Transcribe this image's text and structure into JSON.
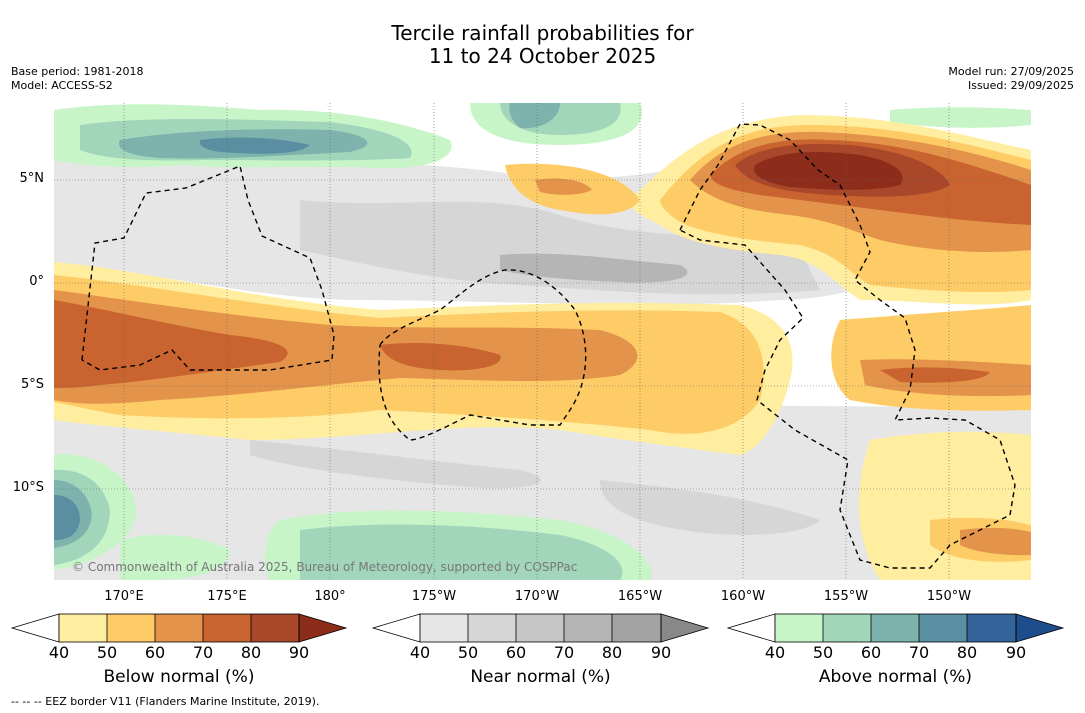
{
  "title": {
    "line1": "Tercile rainfall probabilities for",
    "line2": "11 to 24 October 2025"
  },
  "meta_left": {
    "base_period": "Base period: 1981-2018",
    "model": "Model: ACCESS-S2"
  },
  "meta_right": {
    "model_run": "Model run: 27/09/2025",
    "issued": "Issued: 29/09/2025"
  },
  "map": {
    "lat_labels": [
      "5°N",
      "0°",
      "5°S",
      "10°S"
    ],
    "lon_labels": [
      "170°E",
      "175°E",
      "180°",
      "175°W",
      "170°W",
      "165°W",
      "160°W",
      "155°W",
      "150°W"
    ],
    "copyright": "© Commonwealth of Australia 2025, Bureau of Meteorology, supported by COSPPac"
  },
  "colorbars": [
    {
      "title": "Below normal (%)",
      "ticks": [
        "40",
        "50",
        "60",
        "70",
        "80",
        "90"
      ],
      "colors": [
        "#ffffff",
        "#ffeda0",
        "#fecc66",
        "#e3944a",
        "#c9632f",
        "#a9472a",
        "#8c2d1b"
      ]
    },
    {
      "title": "Near normal (%)",
      "ticks": [
        "40",
        "50",
        "60",
        "70",
        "80",
        "90"
      ],
      "colors": [
        "#ffffff",
        "#e6e6e6",
        "#d6d6d6",
        "#c6c6c6",
        "#b5b5b5",
        "#a3a3a3",
        "#888888"
      ]
    },
    {
      "title": "Above normal (%)",
      "ticks": [
        "40",
        "50",
        "60",
        "70",
        "80",
        "90"
      ],
      "colors": [
        "#ffffff",
        "#c8f5c8",
        "#a2d6bb",
        "#7eb3ad",
        "#5a8fa2",
        "#33659a",
        "#1e4d8c"
      ]
    }
  ],
  "footnote": "-- -- -- EEZ border V11 (Flanders Marine Institute, 2019)."
}
